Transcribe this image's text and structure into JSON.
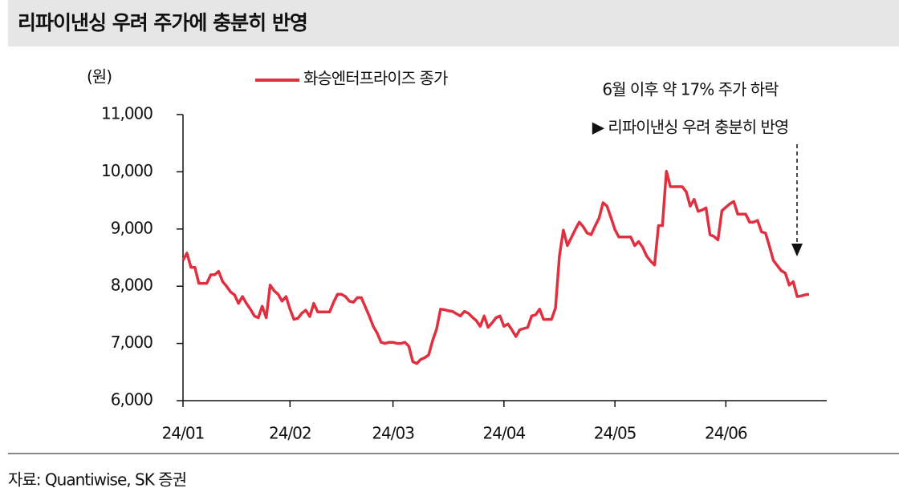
{
  "chart_data": {
    "type": "line",
    "title": "리파이낸싱 우려 주가에 충분히 반영",
    "unit_label": "(원)",
    "annotation": [
      "6월 이후 약 17% 주가 하락",
      "▶ 리파이낸싱 우려 충분히 반영"
    ],
    "source": "자료: Quantiwise, SK 증권",
    "categories": [
      "24/01",
      null,
      null,
      null,
      null,
      null,
      null,
      null,
      null,
      null,
      null,
      null,
      null,
      null,
      null,
      null,
      null,
      null,
      null,
      null,
      null,
      null,
      null,
      null,
      null,
      null,
      null,
      "24/02",
      null,
      null,
      null,
      null,
      null,
      null,
      null,
      null,
      null,
      null,
      null,
      null,
      null,
      null,
      null,
      null,
      null,
      null,
      null,
      null,
      null,
      null,
      null,
      null,
      null,
      "24/03",
      null,
      null,
      null,
      null,
      null,
      null,
      null,
      null,
      null,
      null,
      null,
      null,
      null,
      null,
      null,
      null,
      null,
      null,
      null,
      null,
      null,
      null,
      null,
      null,
      null,
      null,
      null,
      "24/04",
      null,
      null,
      null,
      null,
      null,
      null,
      null,
      null,
      null,
      null,
      null,
      null,
      null,
      null,
      null,
      null,
      null,
      null,
      null,
      null,
      null,
      null,
      null,
      null,
      null,
      null,
      null,
      "24/05",
      null,
      null,
      null,
      null,
      null,
      null,
      null,
      null,
      null,
      null,
      null,
      null,
      null,
      null,
      null,
      null,
      null,
      null,
      null,
      null,
      null,
      null,
      null,
      null,
      null,
      null,
      null,
      "24/06",
      null,
      null,
      null,
      null,
      null,
      null,
      null,
      null,
      null,
      null,
      null,
      null,
      null,
      null,
      null,
      null,
      null,
      null,
      null,
      null,
      null
    ],
    "series": [
      {
        "name": "화승엔터프라이즈 종가",
        "color": "#e03040",
        "values": [
          8450,
          8580,
          8330,
          8330,
          8050,
          8050,
          8050,
          8200,
          8200,
          8260,
          8080,
          8000,
          7900,
          7850,
          7700,
          7820,
          7700,
          7600,
          7480,
          7450,
          7650,
          7450,
          8020,
          7920,
          7860,
          7740,
          7820,
          7600,
          7420,
          7440,
          7530,
          7580,
          7470,
          7700,
          7550,
          7550,
          7550,
          7550,
          7720,
          7860,
          7860,
          7820,
          7740,
          7720,
          7800,
          7800,
          7640,
          7480,
          7300,
          7180,
          7020,
          7000,
          7020,
          7020,
          7000,
          7000,
          7020,
          6950,
          6680,
          6650,
          6720,
          6750,
          6800,
          7050,
          7250,
          7600,
          7590,
          7570,
          7560,
          7520,
          7480,
          7560,
          7530,
          7460,
          7400,
          7300,
          7480,
          7280,
          7360,
          7450,
          7480,
          7300,
          7340,
          7240,
          7120,
          7240,
          7260,
          7280,
          7480,
          7500,
          7600,
          7420,
          7420,
          7420,
          7620,
          8530,
          8980,
          8710,
          8850,
          8990,
          9120,
          9040,
          8930,
          8900,
          9050,
          9190,
          9460,
          9400,
          9200,
          8990,
          8860,
          8860,
          8860,
          8860,
          8710,
          8780,
          8680,
          8530,
          8440,
          8370,
          9060,
          9060,
          10010,
          9740,
          9740,
          9740,
          9740,
          9650,
          9400,
          9520,
          9310,
          9330,
          9370,
          8900,
          8870,
          8810,
          9320,
          9380,
          9440,
          9480,
          9260,
          9260,
          9260,
          9120,
          9120,
          9150,
          8950,
          8930,
          8700,
          8450,
          8360,
          8270,
          8230,
          8020,
          8080,
          7820,
          7830,
          7850,
          7860
        ]
      }
    ],
    "ylim": [
      6000,
      11000
    ],
    "yticks": [
      {
        "value": 6000,
        "label": "6,000"
      },
      {
        "value": 7000,
        "label": "7,000"
      },
      {
        "value": 8000,
        "label": "8,000"
      },
      {
        "value": 9000,
        "label": "9,000"
      },
      {
        "value": 10000,
        "label": "10,000"
      },
      {
        "value": 11000,
        "label": "11,000"
      }
    ]
  }
}
